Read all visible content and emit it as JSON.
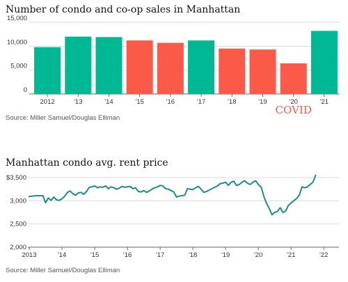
{
  "colors": {
    "teal": "#00b894",
    "coral": "#fb5a49",
    "line": "#1e8d84"
  },
  "chart_data": [
    {
      "type": "bar",
      "title": "Number of condo and co-op sales in Manhattan",
      "source": "Source: Miller Samuel/Douglas Elliman",
      "categories": [
        "2012",
        "'13",
        "'14",
        "'15",
        "'16",
        "'17",
        "'18",
        "'19",
        "'20",
        "'21"
      ],
      "values": [
        9800,
        12000,
        11900,
        11200,
        10700,
        11200,
        9500,
        9300,
        6400,
        13200
      ],
      "bar_colors": [
        "teal",
        "teal",
        "teal",
        "coral",
        "coral",
        "teal",
        "coral",
        "coral",
        "coral",
        "teal"
      ],
      "ylim": [
        0,
        15000
      ],
      "yticks": [
        0,
        5000,
        10000,
        15000
      ],
      "ytick_labels": [
        "0",
        "5,000",
        "10,000",
        "15,000"
      ],
      "grid": true,
      "annotation": {
        "text": "COVID",
        "category": "'20",
        "color": "#fb5a49"
      }
    },
    {
      "type": "line",
      "title": "Manhattan condo avg. rent price",
      "source": "Source: Miller Samuel/Douglas Elliman",
      "x_start": "2013-01",
      "x_interval": "month",
      "xticks": [
        "2013",
        "'14",
        "'15",
        "'16",
        "'17",
        "'18",
        "'19",
        "'20",
        "'21",
        "'22"
      ],
      "ylim": [
        2000,
        3500
      ],
      "yticks": [
        2000,
        2500,
        3000,
        3500
      ],
      "ytick_labels": [
        "2,000",
        "2,500",
        "3,000",
        "$3,500"
      ],
      "grid": true,
      "values": [
        3090,
        3100,
        3105,
        3110,
        3105,
        3110,
        2960,
        3060,
        3010,
        3080,
        3020,
        3010,
        3040,
        3100,
        3180,
        3210,
        3150,
        3120,
        3170,
        3180,
        3140,
        3200,
        3290,
        3300,
        3320,
        3280,
        3300,
        3290,
        3320,
        3260,
        3300,
        3280,
        3250,
        3270,
        3310,
        3290,
        3300,
        3310,
        3260,
        3280,
        3200,
        3190,
        3220,
        3180,
        3210,
        3250,
        3280,
        3300,
        3330,
        3320,
        3260,
        3250,
        3220,
        3190,
        3080,
        3100,
        3110,
        3120,
        3260,
        3250,
        3240,
        3280,
        3310,
        3250,
        3180,
        3200,
        3230,
        3260,
        3290,
        3320,
        3370,
        3380,
        3400,
        3330,
        3400,
        3420,
        3330,
        3350,
        3400,
        3430,
        3380,
        3350,
        3400,
        3430,
        3350,
        3300,
        3100,
        2950,
        2830,
        2700,
        2750,
        2770,
        2850,
        2750,
        2780,
        2900,
        2950,
        3000,
        3050,
        3120,
        3300,
        3280,
        3300,
        3350,
        3400,
        3550
      ]
    }
  ]
}
